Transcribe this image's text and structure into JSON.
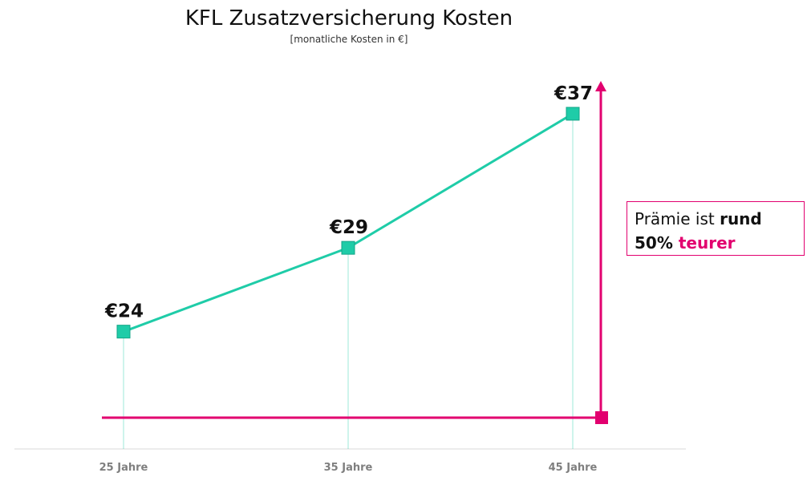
{
  "chart_data": {
    "type": "line",
    "title": "KFL Zusatzversicherung Kosten",
    "subtitle": "[monatliche Kosten in €]",
    "categories": [
      "25 Jahre",
      "35 Jahre",
      "45 Jahre"
    ],
    "values": [
      24,
      29,
      37
    ],
    "data_labels": [
      "€24",
      "€29",
      "€37"
    ],
    "ylim": [
      17,
      38
    ],
    "grid": false,
    "series_color": "#1fcca8",
    "accent_color": "#e2006f"
  },
  "callout": {
    "part1": "Prämie ist ",
    "part2": "rund",
    "part3": "50% ",
    "part4": "teurer"
  }
}
